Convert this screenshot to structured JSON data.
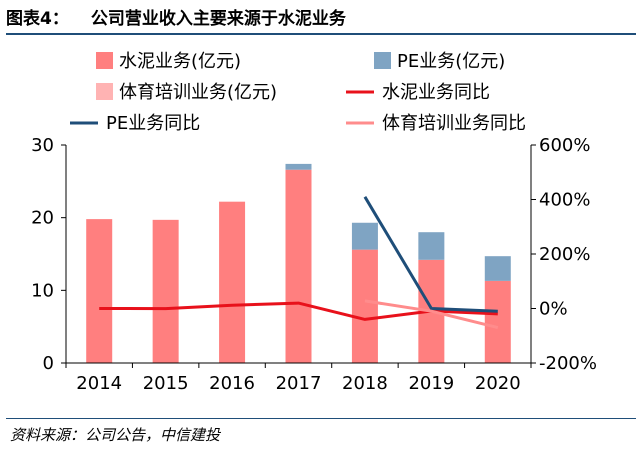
{
  "header": {
    "figure_no": "图表4：",
    "title": "公司营业收入主要来源于水泥业务"
  },
  "source": "资料来源：公司公告，中信建投",
  "colors": {
    "cement_bar": "#FF7F7F",
    "pe_bar": "#7FA4C3",
    "sports_bar": "#FFB3B3",
    "cement_line": "#E8111B",
    "pe_line": "#1F4E79",
    "sports_line": "#FF8C8C"
  },
  "chart_data": {
    "type": "bar",
    "categories": [
      "2014",
      "2015",
      "2016",
      "2017",
      "2018",
      "2019",
      "2020"
    ],
    "stacked": true,
    "series": [
      {
        "name": "水泥业务(亿元)",
        "kind": "bar",
        "axis": "left",
        "values": [
          19.8,
          19.7,
          22.2,
          26.6,
          15.6,
          14.2,
          11.3
        ]
      },
      {
        "name": "PE业务(亿元)",
        "kind": "bar",
        "axis": "left",
        "values": [
          0,
          0,
          0,
          0.8,
          3.7,
          3.8,
          3.4
        ]
      },
      {
        "name": "体育培训业务(亿元)",
        "kind": "bar",
        "axis": "left",
        "values": [
          0,
          0,
          0,
          0,
          0,
          0,
          0
        ]
      },
      {
        "name": "水泥业务同比",
        "kind": "line",
        "axis": "right",
        "values": [
          0,
          -0.5,
          12,
          20,
          -40,
          -9,
          -20
        ]
      },
      {
        "name": "PE业务同比",
        "kind": "line",
        "axis": "right",
        "values": [
          null,
          null,
          null,
          null,
          410,
          0,
          -10
        ]
      },
      {
        "name": "体育培训业务同比",
        "kind": "line",
        "axis": "right",
        "values": [
          null,
          null,
          null,
          null,
          28,
          -10,
          -70
        ]
      }
    ],
    "y_left": {
      "lim": [
        0,
        30
      ],
      "ticks": [
        "0",
        "10",
        "20",
        "30"
      ]
    },
    "y_right": {
      "lim": [
        -200,
        600
      ],
      "ticks": [
        "-200%",
        "0%",
        "200%",
        "400%",
        "600%"
      ]
    },
    "legend": "top",
    "grid": false
  }
}
